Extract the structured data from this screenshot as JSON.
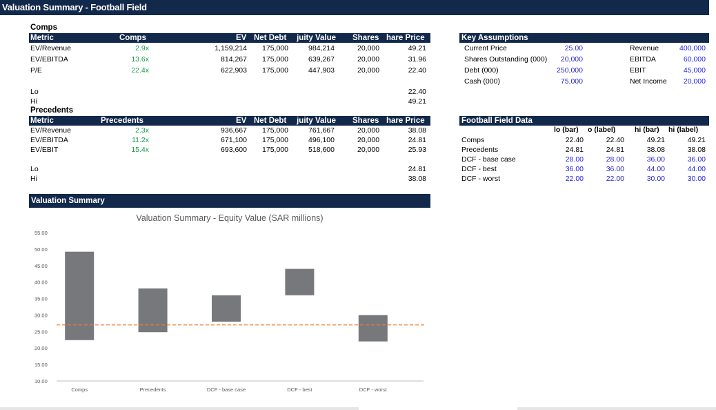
{
  "sheet_title": "Valuation Summary - Football Field",
  "comps": {
    "section_label": "Comps",
    "headers": [
      "Metric",
      "Comps",
      "EV",
      "Net Debt",
      "Equity Value",
      "Shares",
      "Share Price"
    ],
    "headers_visible": [
      "Metric",
      "Comps",
      "EV",
      "Net Debt",
      "juity Value",
      "Shares",
      "hare Price"
    ],
    "rows": [
      {
        "metric": "EV/Revenue",
        "multiple": "2.9x",
        "ev": "1,159,214",
        "net_debt": "175,000",
        "equity": "984,214",
        "shares": "20,000",
        "price": "49.21"
      },
      {
        "metric": "EV/EBITDA",
        "multiple": "13.6x",
        "ev": "814,267",
        "net_debt": "175,000",
        "equity": "639,267",
        "shares": "20,000",
        "price": "31.96"
      },
      {
        "metric": "P/E",
        "multiple": "22.4x",
        "ev": "622,903",
        "net_debt": "175,000",
        "equity": "447,903",
        "shares": "20,000",
        "price": "22.40"
      }
    ],
    "lo_label": "Lo",
    "lo_value": "22.40",
    "hi_label": "Hi",
    "hi_value": "49.21"
  },
  "precedents": {
    "section_label": "Precedents",
    "headers_visible": [
      "Metric",
      "Precedents",
      "EV",
      "Net Debt",
      "juity Value",
      "Shares",
      "hare Price"
    ],
    "rows": [
      {
        "metric": "EV/Revenue",
        "multiple": "2.3x",
        "ev": "936,667",
        "net_debt": "175,000",
        "equity": "761,667",
        "shares": "20,000",
        "price": "38.08"
      },
      {
        "metric": "EV/EBITDA",
        "multiple": "11.2x",
        "ev": "671,100",
        "net_debt": "175,000",
        "equity": "496,100",
        "shares": "20,000",
        "price": "24.81"
      },
      {
        "metric": "EV/EBIT",
        "multiple": "15.4x",
        "ev": "693,600",
        "net_debt": "175,000",
        "equity": "518,600",
        "shares": "20,000",
        "price": "25.93"
      }
    ],
    "lo_label": "Lo",
    "lo_value": "24.81",
    "hi_label": "Hi",
    "hi_value": "38.08"
  },
  "key_assumptions": {
    "header": "Key Assumptions",
    "left": [
      {
        "label": "Current Price",
        "value": "25.00"
      },
      {
        "label": "Shares Outstanding (000)",
        "value": "20,000"
      },
      {
        "label": "Debt (000)",
        "value": "250,000"
      },
      {
        "label": "Cash (000)",
        "value": "75,000"
      }
    ],
    "right": [
      {
        "label": "Revenue",
        "value": "400,000"
      },
      {
        "label": "EBITDA",
        "value": "60,000"
      },
      {
        "label": "EBIT",
        "value": "45,000"
      },
      {
        "label": "Net Income",
        "value": "20,000"
      }
    ]
  },
  "football_data": {
    "header": "Football Field Data",
    "columns": [
      "lo (bar)",
      "o (label)",
      "hi (bar)",
      "hi (label)"
    ],
    "rows": [
      {
        "name": "Comps",
        "lo_bar": "22.40",
        "lo_label": "22.40",
        "hi_bar": "49.21",
        "hi_label": "49.21"
      },
      {
        "name": "Precedents",
        "lo_bar": "24.81",
        "lo_label": "24.81",
        "hi_bar": "38.08",
        "hi_label": "38.08"
      },
      {
        "name": "DCF - base case",
        "lo_bar": "28.00",
        "lo_label": "28.00",
        "hi_bar": "36.00",
        "hi_label": "36.00"
      },
      {
        "name": "DCF - best",
        "lo_bar": "36.00",
        "lo_label": "36.00",
        "hi_bar": "44.00",
        "hi_label": "44.00"
      },
      {
        "name": "DCF - worst",
        "lo_bar": "22.00",
        "lo_label": "22.00",
        "hi_bar": "30.00",
        "hi_label": "30.00"
      }
    ]
  },
  "valuation_summary": {
    "header": "Valuation Summary"
  },
  "colors": {
    "header_bg": "#13294b",
    "multiple_green": "#1a9a4a",
    "input_blue": "#1f1fd4",
    "bar_gray": "#76787c",
    "reference_line": "#ed7d31"
  },
  "chart_data": {
    "type": "bar",
    "subtype": "floating range (football field)",
    "title": "Valuation Summary - Equity Value (SAR millions)",
    "categories": [
      "Comps",
      "Precedents",
      "DCF - base case",
      "DCF - best",
      "DCF - worst"
    ],
    "lo": [
      22.4,
      24.81,
      28.0,
      36.0,
      22.0
    ],
    "hi": [
      49.21,
      38.08,
      36.0,
      44.0,
      30.0
    ],
    "reference_line": {
      "value": 27.0,
      "style": "dashed"
    },
    "ylim": [
      10,
      55
    ],
    "yticks": [
      "55.00",
      "50.00",
      "45.00",
      "40.00",
      "35.00",
      "30.00",
      "25.00",
      "20.00",
      "15.00",
      "10.00"
    ],
    "ytick_values": [
      55,
      50,
      45,
      40,
      35,
      30,
      25,
      20,
      15,
      10
    ],
    "grid": false,
    "legend": "none"
  }
}
